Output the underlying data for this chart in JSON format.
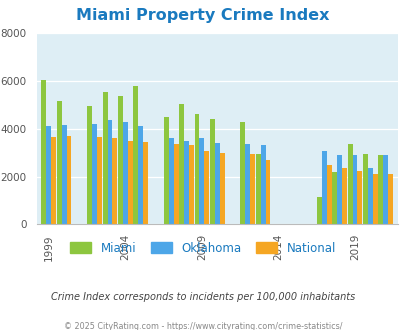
{
  "title": "Miami Property Crime Index",
  "title_color": "#1a7abf",
  "subtitle": "Crime Index corresponds to incidents per 100,000 inhabitants",
  "footer": "© 2025 CityRating.com - https://www.cityrating.com/crime-statistics/",
  "years": [
    1999,
    2000,
    2002,
    2003,
    2004,
    2005,
    2007,
    2008,
    2009,
    2010,
    2012,
    2013,
    2017,
    2018,
    2019,
    2020,
    2021
  ],
  "miami": [
    6050,
    5150,
    4950,
    5550,
    5350,
    5800,
    4500,
    5050,
    4600,
    4400,
    4300,
    2950,
    1150,
    2200,
    3350,
    2950,
    2900
  ],
  "oklahoma": [
    4100,
    4150,
    4200,
    4350,
    4300,
    4100,
    3600,
    3500,
    3600,
    3400,
    3350,
    3300,
    3050,
    2900,
    2900,
    2350,
    2900
  ],
  "national": [
    3650,
    3700,
    3650,
    3600,
    3500,
    3450,
    3350,
    3300,
    3050,
    2980,
    2950,
    2700,
    2500,
    2350,
    2250,
    2100,
    2100
  ],
  "miami_color": "#8dc63f",
  "oklahoma_color": "#4da6e8",
  "national_color": "#f5a623",
  "bg_color": "#deeef5",
  "ylim": [
    0,
    8000
  ],
  "yticks": [
    0,
    2000,
    4000,
    6000,
    8000
  ],
  "xtick_years": [
    1999,
    2004,
    2009,
    2014,
    2019
  ]
}
